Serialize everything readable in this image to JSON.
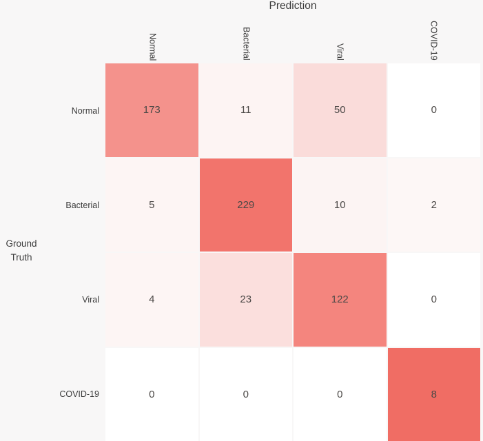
{
  "background_color": "#f8f7f7",
  "chart_data": {
    "type": "heatmap",
    "title": "Prediction",
    "xlabel": "Prediction",
    "ylabel": "Ground Truth",
    "x_categories": [
      "Normal",
      "Bacterial",
      "Viral",
      "COVID-19"
    ],
    "y_categories": [
      "Normal",
      "Bacterial",
      "Viral",
      "COVID-19"
    ],
    "rows": [
      {
        "label": "Normal",
        "values": [
          173,
          11,
          50,
          0
        ],
        "colors": [
          "#f4928c",
          "#fdf4f3",
          "#fadcda",
          "#ffffff"
        ]
      },
      {
        "label": "Bacterial",
        "values": [
          5,
          229,
          10,
          2
        ],
        "colors": [
          "#fdf5f4",
          "#f2746c",
          "#fcf4f3",
          "#fdf7f6"
        ]
      },
      {
        "label": "Viral",
        "values": [
          4,
          23,
          122,
          0
        ],
        "colors": [
          "#fdf5f4",
          "#fbdfdd",
          "#f4857e",
          "#ffffff"
        ]
      },
      {
        "label": "COVID-19",
        "values": [
          0,
          0,
          0,
          8
        ],
        "colors": [
          "#ffffff",
          "#ffffff",
          "#ffffff",
          "#f06d64"
        ]
      }
    ],
    "colormap": {
      "min_color": "#ffffff",
      "max_color": "#f06d64",
      "normalization": "per-row"
    },
    "gridline_color": "#e9e6e6",
    "value_text_color": "#4c4947",
    "legend": "none",
    "grid": "off"
  }
}
